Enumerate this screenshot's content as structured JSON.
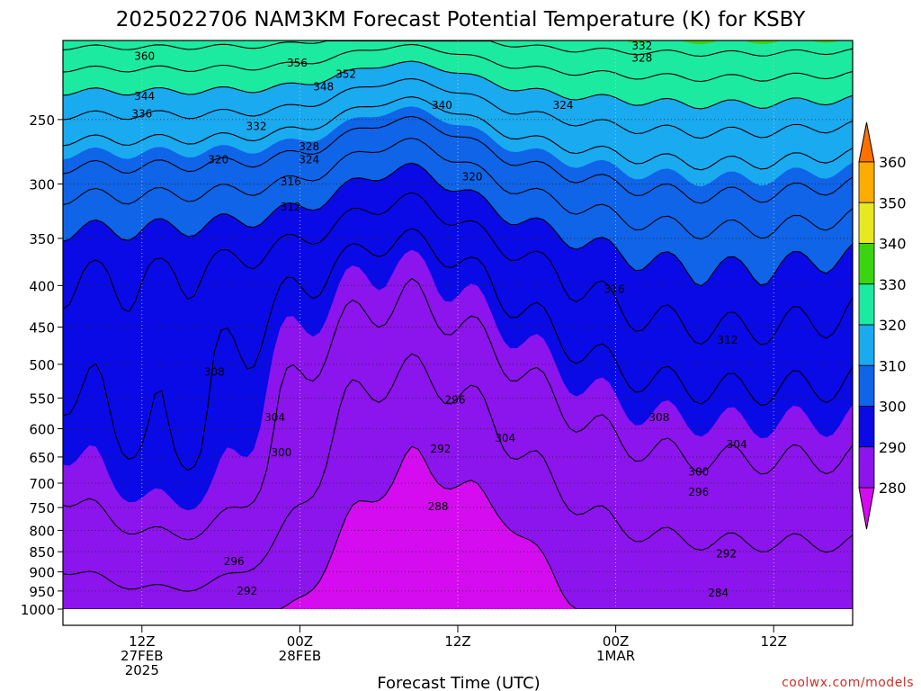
{
  "chart_data": {
    "type": "contour",
    "title": "2025022706 NAM3KM Forecast Potential Temperature (K) for KSBY",
    "xlabel": "Forecast Time (UTC)",
    "credit": "coolwx.com/models",
    "x_ticks": [
      {
        "hour": 12,
        "lines": [
          "12Z",
          "27FEB",
          "2025"
        ]
      },
      {
        "hour": 24,
        "lines": [
          "00Z",
          "28FEB"
        ]
      },
      {
        "hour": 36,
        "lines": [
          "12Z"
        ]
      },
      {
        "hour": 48,
        "lines": [
          "00Z",
          "1MAR"
        ]
      },
      {
        "hour": 60,
        "lines": [
          "12Z"
        ]
      }
    ],
    "x_range_hours": [
      6,
      66
    ],
    "y_axis": {
      "type": "log-pressure",
      "range_hpa": [
        1000,
        200
      ],
      "ticks": [
        250,
        300,
        350,
        400,
        450,
        500,
        550,
        600,
        650,
        700,
        750,
        800,
        850,
        900,
        950,
        1000
      ]
    },
    "levels_k": [
      280,
      290,
      300,
      310,
      320,
      330,
      340,
      350,
      360
    ],
    "colorbar": {
      "labels": [
        "360",
        "350",
        "340",
        "330",
        "320",
        "310",
        "300",
        "290",
        "280"
      ],
      "colors": {
        "lt280": "#d60cf0",
        "b280_290": "#8c14ec",
        "b290_300": "#0a0ae6",
        "b300_310": "#0f64e8",
        "b310_320": "#1aaaf0",
        "b320_330": "#1ceaa0",
        "b330_340": "#3ad410",
        "b340_350": "#e8e820",
        "b350_360": "#ffac00",
        "gt360": "#ff7000"
      }
    },
    "contour_labels": [
      {
        "text": "360",
        "hour": 12.2,
        "p": 209
      },
      {
        "text": "356",
        "hour": 23.8,
        "p": 213
      },
      {
        "text": "352",
        "hour": 27.5,
        "p": 220
      },
      {
        "text": "348",
        "hour": 25.8,
        "p": 228
      },
      {
        "text": "344",
        "hour": 12.2,
        "p": 234
      },
      {
        "text": "340",
        "hour": 34.8,
        "p": 240
      },
      {
        "text": "336",
        "hour": 12.0,
        "p": 246
      },
      {
        "text": "332",
        "hour": 20.7,
        "p": 255
      },
      {
        "text": "332",
        "hour": 50.0,
        "p": 203
      },
      {
        "text": "328",
        "hour": 50.0,
        "p": 210
      },
      {
        "text": "324",
        "hour": 44.0,
        "p": 240
      },
      {
        "text": "328",
        "hour": 24.7,
        "p": 270
      },
      {
        "text": "324",
        "hour": 24.7,
        "p": 280
      },
      {
        "text": "320",
        "hour": 17.8,
        "p": 280
      },
      {
        "text": "320",
        "hour": 37.1,
        "p": 294
      },
      {
        "text": "316",
        "hour": 23.3,
        "p": 298
      },
      {
        "text": "312",
        "hour": 23.3,
        "p": 320
      },
      {
        "text": "316",
        "hour": 47.9,
        "p": 404
      },
      {
        "text": "312",
        "hour": 56.5,
        "p": 467
      },
      {
        "text": "308",
        "hour": 17.5,
        "p": 511
      },
      {
        "text": "304",
        "hour": 22.1,
        "p": 581
      },
      {
        "text": "296",
        "hour": 35.8,
        "p": 553
      },
      {
        "text": "308",
        "hour": 51.3,
        "p": 581
      },
      {
        "text": "304",
        "hour": 39.6,
        "p": 616
      },
      {
        "text": "292",
        "hour": 34.7,
        "p": 635
      },
      {
        "text": "304",
        "hour": 57.2,
        "p": 627
      },
      {
        "text": "300",
        "hour": 22.6,
        "p": 642
      },
      {
        "text": "300",
        "hour": 54.3,
        "p": 678
      },
      {
        "text": "296",
        "hour": 54.3,
        "p": 718
      },
      {
        "text": "288",
        "hour": 34.5,
        "p": 748
      },
      {
        "text": "292",
        "hour": 56.4,
        "p": 855
      },
      {
        "text": "296",
        "hour": 19.0,
        "p": 874
      },
      {
        "text": "292",
        "hour": 20.0,
        "p": 950
      },
      {
        "text": "284",
        "hour": 55.8,
        "p": 955
      }
    ]
  }
}
